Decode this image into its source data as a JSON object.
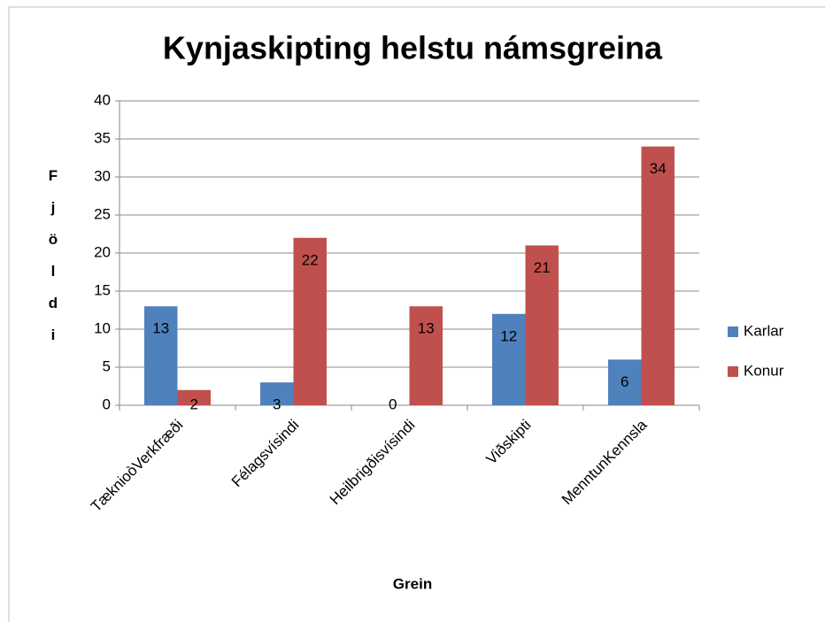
{
  "chart_data": {
    "type": "bar",
    "title": "Kynjaskipting helstu námsgreina",
    "x_label": "Grein",
    "y_label": "Fjöldi",
    "categories": [
      "TæknioòVerkfræði",
      "Félagsvísindi",
      "Heilbrigðisvísindi",
      "Viðskipti",
      "MenntunKennsla"
    ],
    "series": [
      {
        "name": "Karlar",
        "color": "#4f81bd",
        "values": [
          13,
          3,
          0,
          12,
          6
        ]
      },
      {
        "name": "Konur",
        "color": "#c0504d",
        "values": [
          2,
          22,
          13,
          21,
          34
        ]
      }
    ],
    "ylim": [
      0,
      40
    ],
    "yticks": [
      0,
      5,
      10,
      15,
      20,
      25,
      30,
      35,
      40
    ],
    "grid": true,
    "legend": "right",
    "data_labels": true
  }
}
